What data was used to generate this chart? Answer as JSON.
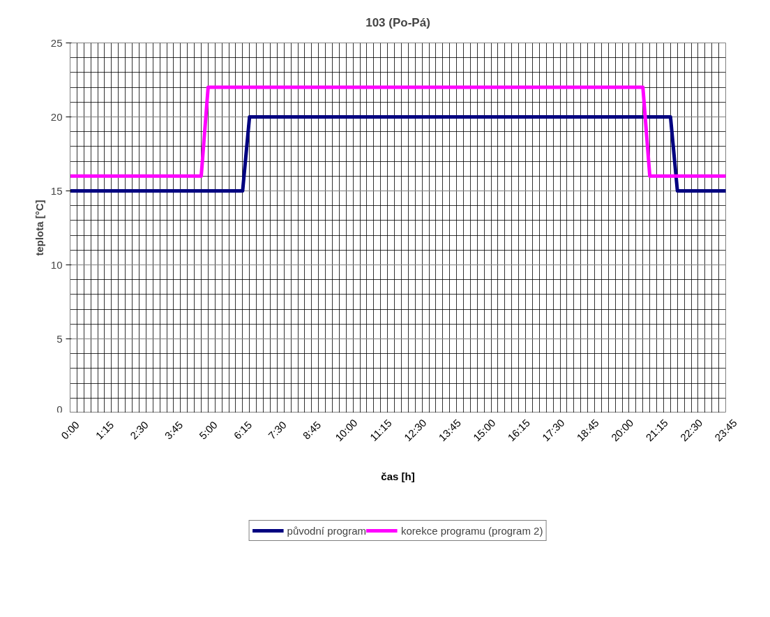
{
  "chart_data": {
    "type": "line",
    "title": "103 (Po-Pá)",
    "xlabel": "čas [h]",
    "ylabel": "teplota [°C]",
    "x": [
      0,
      0.25,
      0.5,
      0.75,
      1,
      1.25,
      1.5,
      1.75,
      2,
      2.25,
      2.5,
      2.75,
      3,
      3.25,
      3.5,
      3.75,
      4,
      4.25,
      4.5,
      4.75,
      5,
      5.25,
      5.5,
      5.75,
      6,
      6.25,
      6.5,
      6.75,
      7,
      7.25,
      7.5,
      7.75,
      8,
      8.25,
      8.5,
      8.75,
      9,
      9.25,
      9.5,
      9.75,
      10,
      10.25,
      10.5,
      10.75,
      11,
      11.25,
      11.5,
      11.75,
      12,
      12.25,
      12.5,
      12.75,
      13,
      13.25,
      13.5,
      13.75,
      14,
      14.25,
      14.5,
      14.75,
      15,
      15.25,
      15.5,
      15.75,
      16,
      16.25,
      16.5,
      16.75,
      17,
      17.25,
      17.5,
      17.75,
      18,
      18.25,
      18.5,
      18.75,
      19,
      19.25,
      19.5,
      19.75,
      20,
      20.25,
      20.5,
      20.75,
      21,
      21.25,
      21.5,
      21.75,
      22,
      22.25,
      22.5,
      22.75,
      23,
      23.25,
      23.5,
      23.75
    ],
    "series": [
      {
        "name": "původní program",
        "color": "#000080",
        "values": [
          15,
          15,
          15,
          15,
          15,
          15,
          15,
          15,
          15,
          15,
          15,
          15,
          15,
          15,
          15,
          15,
          15,
          15,
          15,
          15,
          15,
          15,
          15,
          15,
          15,
          15,
          20,
          20,
          20,
          20,
          20,
          20,
          20,
          20,
          20,
          20,
          20,
          20,
          20,
          20,
          20,
          20,
          20,
          20,
          20,
          20,
          20,
          20,
          20,
          20,
          20,
          20,
          20,
          20,
          20,
          20,
          20,
          20,
          20,
          20,
          20,
          20,
          20,
          20,
          20,
          20,
          20,
          20,
          20,
          20,
          20,
          20,
          20,
          20,
          20,
          20,
          20,
          20,
          20,
          20,
          20,
          20,
          20,
          20,
          20,
          20,
          20,
          20,
          15,
          15,
          15,
          15,
          15,
          15,
          15,
          15
        ]
      },
      {
        "name": "korekce programu (program 2)",
        "color": "#ff00ff",
        "values": [
          16,
          16,
          16,
          16,
          16,
          16,
          16,
          16,
          16,
          16,
          16,
          16,
          16,
          16,
          16,
          16,
          16,
          16,
          16,
          16,
          22,
          22,
          22,
          22,
          22,
          22,
          22,
          22,
          22,
          22,
          22,
          22,
          22,
          22,
          22,
          22,
          22,
          22,
          22,
          22,
          22,
          22,
          22,
          22,
          22,
          22,
          22,
          22,
          22,
          22,
          22,
          22,
          22,
          22,
          22,
          22,
          22,
          22,
          22,
          22,
          22,
          22,
          22,
          22,
          22,
          22,
          22,
          22,
          22,
          22,
          22,
          22,
          22,
          22,
          22,
          22,
          22,
          22,
          22,
          22,
          22,
          22,
          22,
          22,
          16,
          16,
          16,
          16,
          16,
          16,
          16,
          16,
          16,
          16,
          16,
          16
        ]
      }
    ],
    "xlim": [
      0,
      23.75
    ],
    "xticks": [
      {
        "value": 0,
        "label": "0:00"
      },
      {
        "value": 1.25,
        "label": "1:15"
      },
      {
        "value": 2.5,
        "label": "2:30"
      },
      {
        "value": 3.75,
        "label": "3:45"
      },
      {
        "value": 5,
        "label": "5:00"
      },
      {
        "value": 6.25,
        "label": "6:15"
      },
      {
        "value": 7.5,
        "label": "7:30"
      },
      {
        "value": 8.75,
        "label": "8:45"
      },
      {
        "value": 10,
        "label": "10:00"
      },
      {
        "value": 11.25,
        "label": "11:15"
      },
      {
        "value": 12.5,
        "label": "12:30"
      },
      {
        "value": 13.75,
        "label": "13:45"
      },
      {
        "value": 15,
        "label": "15:00"
      },
      {
        "value": 16.25,
        "label": "16:15"
      },
      {
        "value": 17.5,
        "label": "17:30"
      },
      {
        "value": 18.75,
        "label": "18:45"
      },
      {
        "value": 20,
        "label": "20:00"
      },
      {
        "value": 21.25,
        "label": "21:15"
      },
      {
        "value": 22.5,
        "label": "22:30"
      },
      {
        "value": 23.75,
        "label": "23:45"
      }
    ],
    "ylim": [
      0,
      25
    ],
    "yticks": [
      0,
      5,
      10,
      15,
      20,
      25
    ],
    "grid": true,
    "legend": "bottom",
    "marker": "none",
    "line_style": "solid"
  }
}
